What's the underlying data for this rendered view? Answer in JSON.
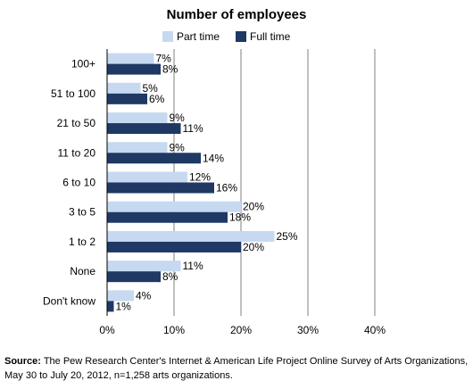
{
  "chart_data": {
    "type": "bar",
    "orientation": "horizontal",
    "title": "Number of employees",
    "categories": [
      "100+",
      "51 to 100",
      "21 to 50",
      "11 to 20",
      "6 to 10",
      "3 to 5",
      "1 to 2",
      "None",
      "Don't know"
    ],
    "series": [
      {
        "name": "Part time",
        "values": [
          7,
          5,
          9,
          9,
          12,
          20,
          25,
          11,
          4
        ]
      },
      {
        "name": "Full time",
        "values": [
          8,
          6,
          11,
          14,
          16,
          18,
          20,
          8,
          1
        ]
      }
    ],
    "value_labels": {
      "Part time": [
        "7%",
        "5%",
        "9%",
        "9%",
        "12%",
        "20%",
        "25%",
        "11%",
        "4%"
      ],
      "Full time": [
        "8%",
        "6%",
        "11%",
        "14%",
        "16%",
        "18%",
        "20%",
        "8%",
        "1%"
      ]
    },
    "xlim": [
      0,
      40
    ],
    "xticks": [
      "0%",
      "10%",
      "20%",
      "30%",
      "40%"
    ],
    "grid": true,
    "legend": "top-center"
  },
  "colors": {
    "part_time": "#c6d9f1",
    "full_time": "#1f3864",
    "grid": "#808080"
  },
  "source": {
    "label": "Source:",
    "text": "The Pew Research Center's Internet & American Life Project Online Survey of Arts Organizations, May 30 to July 20, 2012, n=1,258 arts organizations."
  }
}
